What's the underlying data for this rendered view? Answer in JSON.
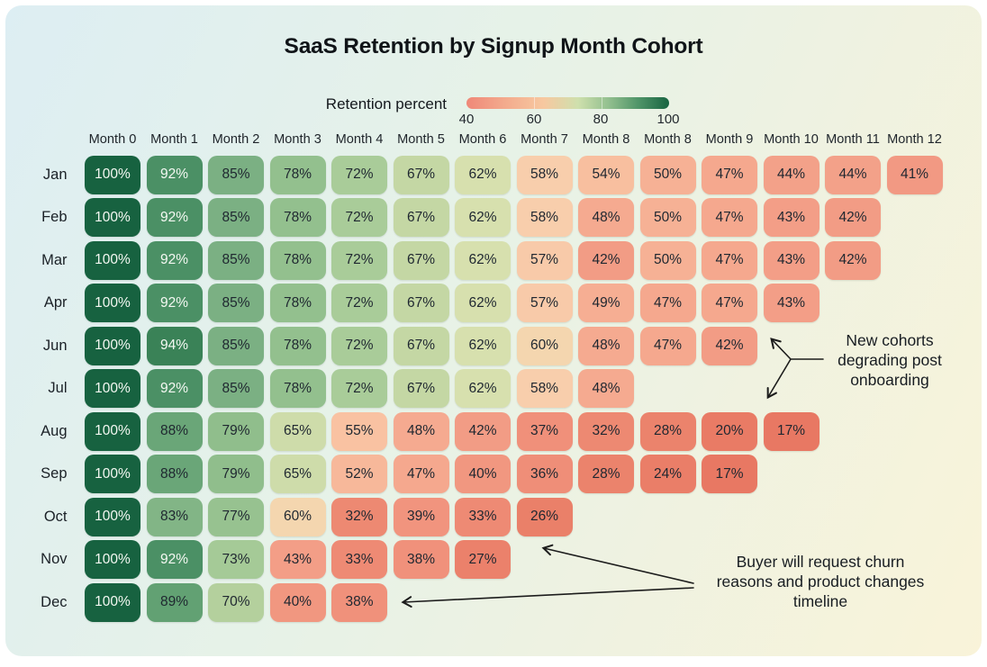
{
  "title": "SaaS Retention by Signup Month Cohort",
  "legend": {
    "label": "Retention percent",
    "ticks": [
      "40",
      "60",
      "80",
      "100"
    ]
  },
  "chart_data": {
    "type": "heatmap",
    "title": "SaaS Retention by Signup Month Cohort",
    "unit": "%",
    "color_scale_label": "Retention percent",
    "color_scale_domain": [
      40,
      100
    ],
    "color_scale_ticks": [
      40,
      60,
      80,
      100
    ],
    "columns": [
      "Month 0",
      "Month 1",
      "Month 2",
      "Month 3",
      "Month 4",
      "Month 5",
      "Month 6",
      "Month 7",
      "Month 8",
      "Month 8",
      "Month 9",
      "Month 10",
      "Month 11",
      "Month 12"
    ],
    "rows": [
      {
        "label": "Jan",
        "values": [
          100,
          92,
          85,
          78,
          72,
          67,
          62,
          58,
          54,
          50,
          47,
          44,
          44,
          41
        ]
      },
      {
        "label": "Feb",
        "values": [
          100,
          92,
          85,
          78,
          72,
          67,
          62,
          58,
          48,
          50,
          47,
          43,
          42
        ]
      },
      {
        "label": "Mar",
        "values": [
          100,
          92,
          85,
          78,
          72,
          67,
          62,
          57,
          42,
          50,
          47,
          43,
          42
        ]
      },
      {
        "label": "Apr",
        "values": [
          100,
          92,
          85,
          78,
          72,
          67,
          62,
          57,
          49,
          47,
          47,
          43
        ]
      },
      {
        "label": "Jun",
        "values": [
          100,
          94,
          85,
          78,
          72,
          67,
          62,
          60,
          48,
          47,
          42
        ]
      },
      {
        "label": "Jul",
        "values": [
          100,
          92,
          85,
          78,
          72,
          67,
          62,
          58,
          48
        ]
      },
      {
        "label": "Aug",
        "values": [
          100,
          88,
          79,
          65,
          55,
          48,
          42,
          37,
          32,
          28,
          20,
          17
        ]
      },
      {
        "label": "Sep",
        "values": [
          100,
          88,
          79,
          65,
          52,
          47,
          40,
          36,
          28,
          24,
          17
        ]
      },
      {
        "label": "Oct",
        "values": [
          100,
          83,
          77,
          60,
          32,
          39,
          33,
          26
        ]
      },
      {
        "label": "Nov",
        "values": [
          100,
          92,
          73,
          43,
          33,
          38,
          27
        ]
      },
      {
        "label": "Dec",
        "values": [
          100,
          89,
          70,
          40,
          38
        ]
      }
    ],
    "colormap_stops": [
      [
        17,
        "#e87863"
      ],
      [
        26,
        "#ea8069"
      ],
      [
        33,
        "#ee8a74"
      ],
      [
        38,
        "#f0917b"
      ],
      [
        42,
        "#f29c85"
      ],
      [
        48,
        "#f5aa90"
      ],
      [
        52,
        "#f7b89a"
      ],
      [
        55,
        "#f9c2a2"
      ],
      [
        58,
        "#f8ceac"
      ],
      [
        60,
        "#f4d6af"
      ],
      [
        62,
        "#d7e0ae"
      ],
      [
        65,
        "#cedcaa"
      ],
      [
        67,
        "#c4d7a4"
      ],
      [
        72,
        "#a9cc99"
      ],
      [
        78,
        "#93c08e"
      ],
      [
        85,
        "#7bb083"
      ],
      [
        88,
        "#6aa678"
      ],
      [
        92,
        "#4b9065"
      ],
      [
        94,
        "#3a8257"
      ],
      [
        100,
        "#176240"
      ]
    ],
    "white_text_min": 92
  },
  "annotations": [
    {
      "lines": [
        "New cohorts",
        "degrading post",
        "onboarding"
      ]
    },
    {
      "lines": [
        "Buyer will request churn",
        "reasons and product changes",
        "timeline"
      ]
    }
  ],
  "colors": {
    "background_start": "#ddeef3",
    "background_end": "#f9f3d9",
    "scale_low": "#ef8878",
    "scale_high": "#186441",
    "arrow": "#1c1c1c"
  }
}
